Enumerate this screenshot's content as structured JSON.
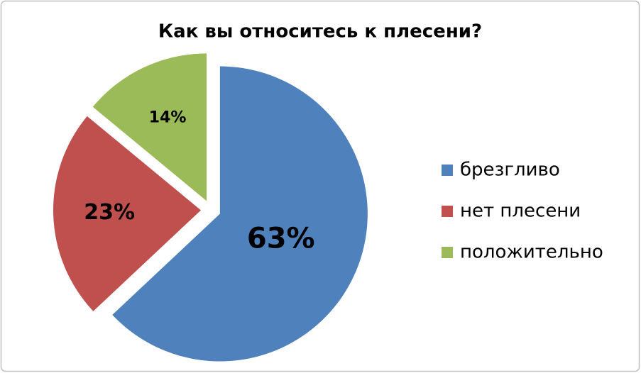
{
  "chart_data": {
    "type": "pie",
    "title": "Как вы относитесь к плесени?",
    "categories": [
      "брезгливо",
      "нет плесени",
      "положительно"
    ],
    "values": [
      63,
      23,
      14
    ],
    "value_labels": [
      "63%",
      "23%",
      "14%"
    ],
    "colors": [
      "#4f81bd",
      "#c0504d",
      "#9bbb59"
    ],
    "legend": "right"
  }
}
